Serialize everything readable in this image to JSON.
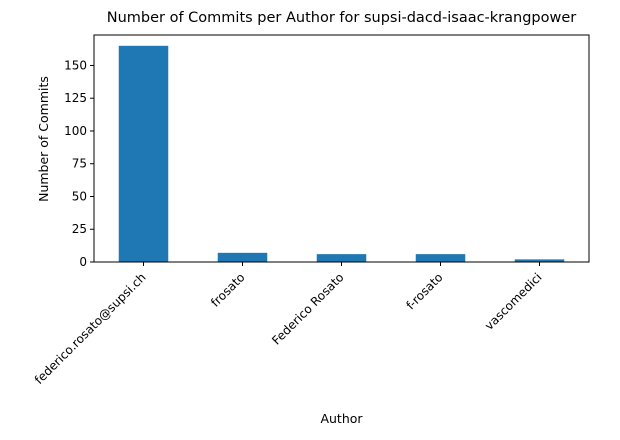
{
  "chart_data": {
    "type": "bar",
    "title": "Number of Commits per Author for supsi-dacd-isaac-krangpower",
    "xlabel": "Author",
    "ylabel": "Number of Commits",
    "categories": [
      "federico.rosato@supsi.ch",
      "frosato",
      "Federico Rosato",
      "f-rosato",
      "vascomedici"
    ],
    "values": [
      165,
      7,
      6,
      6,
      2
    ],
    "ylim": [
      0,
      173.25
    ],
    "yticks": [
      0,
      25,
      50,
      75,
      100,
      125,
      150
    ],
    "bar_color": "#1f77b4",
    "grid": false,
    "legend": "none"
  }
}
